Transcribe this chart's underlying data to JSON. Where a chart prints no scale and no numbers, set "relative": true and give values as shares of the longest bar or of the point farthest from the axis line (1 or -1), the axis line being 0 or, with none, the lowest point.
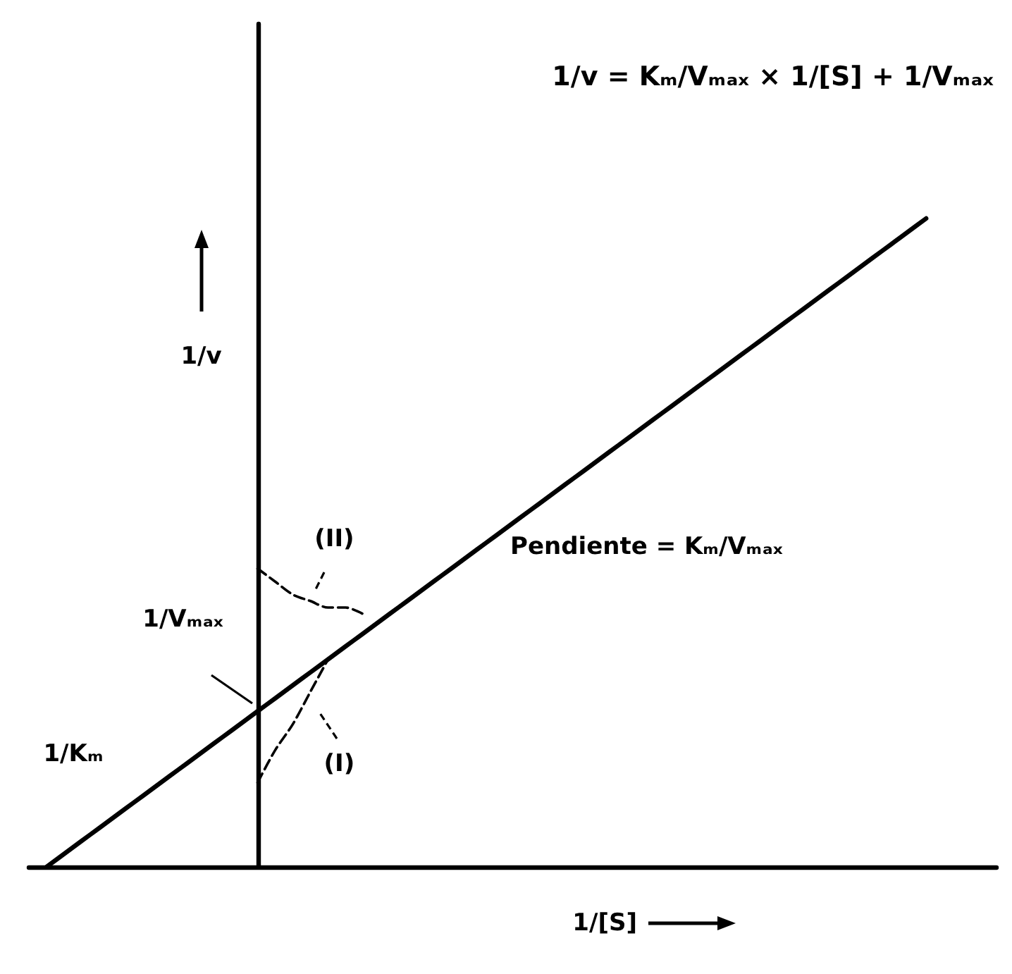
{
  "chart_data": {
    "type": "line",
    "relative": true,
    "marker": "none",
    "title": "1/v = Kₘ/Vₘₐₓ × 1/[S] + 1/Vₘₐₓ",
    "xlabel": "1/[S]",
    "ylabel": "1/v",
    "categories": [
      null,
      null,
      null,
      null,
      null,
      null,
      null,
      null,
      null,
      null,
      null,
      null,
      null,
      null,
      null,
      null,
      null,
      null,
      null,
      null,
      null,
      null,
      null,
      null,
      null,
      null,
      null,
      null,
      null,
      null,
      null,
      null,
      null,
      null,
      null,
      null,
      null,
      null,
      null,
      null,
      null,
      null,
      null,
      null,
      null,
      null,
      null,
      null,
      null,
      null,
      null,
      null,
      null,
      null,
      null,
      null
    ],
    "series": [
      {
        "color": "#000000",
        "line_style": "solid",
        "values": [
          null,
          0,
          0.02,
          0.04,
          0.06,
          0.08,
          0.1,
          0.12,
          0.14,
          0.16,
          0.18,
          0.2,
          0.22,
          0.24,
          0.26,
          0.28,
          0.3,
          0.32,
          0.34,
          0.36,
          0.38,
          0.4,
          0.42,
          0.44,
          0.46,
          0.48,
          0.5,
          0.52,
          0.54,
          0.56,
          0.58,
          0.6,
          0.62,
          0.64,
          0.66,
          0.68,
          0.7,
          0.72,
          0.74,
          0.76,
          0.78,
          0.8,
          0.82,
          0.84,
          0.86,
          0.88,
          0.9,
          0.92,
          0.94,
          0.96,
          0.98,
          1,
          null,
          null,
          null,
          null
        ]
      },
      {
        "name": "(II)",
        "color": "#000000",
        "line_style": "dashed",
        "values": [
          null,
          null,
          null,
          null,
          null,
          null,
          null,
          null,
          null,
          null,
          null,
          null,
          null,
          0.46,
          0.44,
          0.42,
          0.41,
          0.4,
          0.4,
          0.39,
          null,
          null,
          null,
          null,
          null,
          null,
          null,
          null,
          null,
          null,
          null,
          null,
          null,
          null,
          null,
          null,
          null,
          null,
          null,
          null,
          null,
          null,
          null,
          null,
          null,
          null,
          null,
          null,
          null,
          null,
          null,
          null,
          null,
          null,
          null,
          null
        ]
      },
      {
        "name": "(I)",
        "color": "#000000",
        "line_style": "dashed",
        "values": [
          null,
          null,
          null,
          null,
          null,
          null,
          null,
          null,
          null,
          null,
          null,
          null,
          null,
          0.13,
          0.18,
          0.22,
          0.27,
          0.32,
          null,
          null,
          null,
          null,
          null,
          null,
          null,
          null,
          null,
          null,
          null,
          null,
          null,
          null,
          null,
          null,
          null,
          null,
          null,
          null,
          null,
          null,
          null,
          null,
          null,
          null,
          null,
          null,
          null,
          null,
          null,
          null,
          null,
          null,
          null,
          null,
          null,
          null
        ]
      }
    ],
    "annotations": [
      "1/Kₘ",
      "1/Vₘₐₓ",
      "Pendiente = Kₘ/Vₘₐₓ"
    ]
  }
}
